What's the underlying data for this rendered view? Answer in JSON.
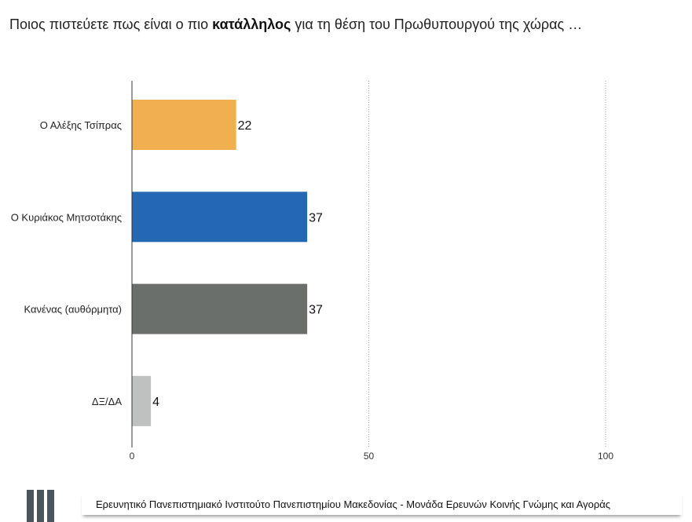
{
  "title": {
    "prefix": "Ποιος πιστεύετε πως είναι ο πιο ",
    "bold": "κατάλληλος",
    "suffix": " για τη θέση του Πρωθυπουργού της χώρας …"
  },
  "footer": "Ερευνητικό Πανεπιστημιακό Ινστιτούτο Πανεπιστημίου Μακεδονίας - Μονάδα Ερευνών Κοινής Γνώμης και Αγοράς",
  "chart_data": {
    "type": "bar",
    "orientation": "horizontal",
    "title": "Ποιος πιστεύετε πως είναι ο πιο κατάλληλος για τη θέση του Πρωθυπουργού της χώρας …",
    "categories": [
      "Ο Αλέξης Τσίπρας",
      "Ο Κυριάκος Μητσοτάκης",
      "Κανένας (αυθόρμητα)",
      "ΔΞ/ΔΑ"
    ],
    "values": [
      22,
      37,
      37,
      4
    ],
    "colors": [
      "#f0b050",
      "#2468b4",
      "#6b6f6c",
      "#bfc1c0"
    ],
    "xlim": [
      0,
      100
    ],
    "xticks": [
      "0",
      "50",
      "100"
    ],
    "xtick_values": [
      0,
      50,
      100
    ],
    "grid": "vertical dotted",
    "xlabel": "",
    "ylabel": ""
  }
}
